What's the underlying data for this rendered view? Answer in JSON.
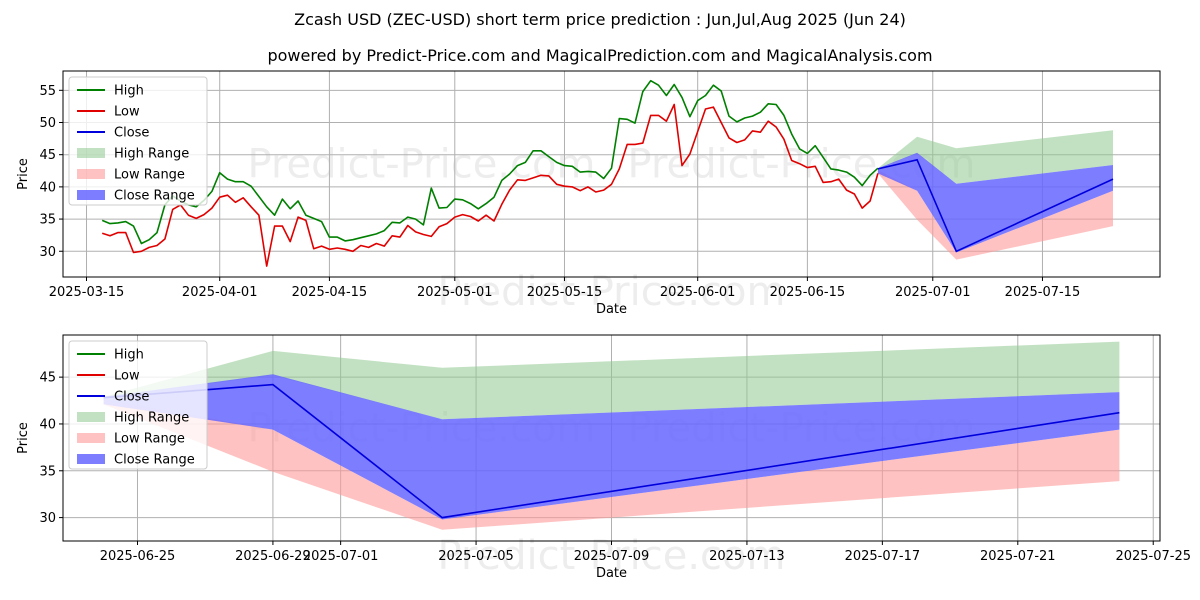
{
  "chart_data": [
    {
      "type": "line",
      "panel": "top",
      "title": "Zcash USD (ZEC-USD) short term price prediction : Jun,Jul,Aug 2025 (Jun 24)",
      "subtitle": "powered by Predict-Price.com and MagicalPrediction.com and MagicalAnalysis.com",
      "xlabel": "Date",
      "ylabel": "Price",
      "watermark": "Predict-Price.com",
      "xlim": [
        "2025-03-12",
        "2025-07-30"
      ],
      "ylim": [
        26,
        58
      ],
      "xticks": [
        {
          "date": "2025-03-15",
          "label": "2025-03-15"
        },
        {
          "date": "2025-04-01",
          "label": "2025-04-01"
        },
        {
          "date": "2025-04-15",
          "label": "2025-04-15"
        },
        {
          "date": "2025-05-01",
          "label": "2025-05-01"
        },
        {
          "date": "2025-05-15",
          "label": "2025-05-15"
        },
        {
          "date": "2025-06-01",
          "label": "2025-06-01"
        },
        {
          "date": "2025-06-15",
          "label": "2025-06-15"
        },
        {
          "date": "2025-07-01",
          "label": "2025-07-01"
        },
        {
          "date": "2025-07-15",
          "label": "2025-07-15"
        }
      ],
      "yticks": [
        30,
        35,
        40,
        45,
        50,
        55
      ],
      "grid": true,
      "legend": {
        "position": "top-left",
        "entries": [
          "High",
          "Low",
          "Close",
          "High Range",
          "Low Range",
          "Close Range"
        ]
      },
      "colors": {
        "high": "#008000",
        "low": "#e00000",
        "close": "#0000dd",
        "high_range": "#8fc98f",
        "low_range": "#ff9a9a",
        "close_range": "#6666ff"
      },
      "history_start": "2025-03-17",
      "high": [
        34.8,
        34.3,
        34.4,
        34.6,
        33.9,
        31.2,
        31.8,
        32.9,
        37.2,
        38.6,
        37.8,
        37.2,
        36.9,
        37.9,
        39.3,
        42.2,
        41.2,
        40.8,
        40.8,
        40.1,
        38.5,
        36.9,
        35.6,
        38.1,
        36.6,
        37.8,
        35.6,
        35.1,
        34.6,
        32.2,
        32.2,
        31.6,
        31.8,
        32.1,
        32.4,
        32.7,
        33.2,
        34.5,
        34.4,
        35.3,
        35.0,
        34.1,
        39.8,
        36.7,
        36.8,
        38.1,
        38.0,
        37.4,
        36.6,
        37.4,
        38.4,
        41.0,
        42.0,
        43.3,
        43.8,
        45.6,
        45.6,
        44.7,
        43.8,
        43.3,
        43.2,
        42.3,
        42.4,
        42.3,
        41.3,
        42.9,
        50.6,
        50.5,
        49.9,
        54.8,
        56.5,
        55.8,
        54.2,
        55.9,
        53.9,
        50.9,
        53.4,
        54.2,
        55.8,
        54.9,
        51.0,
        50.1,
        50.7,
        51.0,
        51.6,
        52.9,
        52.8,
        51.1,
        48.2,
        45.9,
        45.2,
        46.4,
        44.6,
        42.8,
        42.6,
        42.3,
        41.5,
        40.2,
        41.8,
        42.9
      ],
      "low": [
        32.8,
        32.4,
        32.9,
        32.9,
        29.8,
        30.0,
        30.6,
        30.9,
        31.9,
        36.5,
        37.2,
        35.6,
        35.1,
        35.7,
        36.7,
        38.4,
        38.7,
        37.6,
        38.3,
        36.9,
        35.6,
        27.7,
        33.9,
        33.9,
        31.5,
        35.3,
        34.8,
        30.4,
        30.8,
        30.3,
        30.5,
        30.3,
        30.0,
        30.9,
        30.6,
        31.2,
        30.8,
        32.4,
        32.2,
        34.0,
        33.0,
        32.6,
        32.3,
        33.8,
        34.3,
        35.3,
        35.7,
        35.4,
        34.7,
        35.6,
        34.7,
        37.3,
        39.5,
        41.1,
        41.0,
        41.4,
        41.8,
        41.7,
        40.4,
        40.1,
        40.0,
        39.4,
        40.0,
        39.2,
        39.5,
        40.4,
        42.8,
        46.6,
        46.6,
        46.8,
        51.1,
        51.1,
        50.2,
        52.8,
        43.3,
        45.1,
        48.6,
        52.1,
        52.4,
        50.0,
        47.6,
        46.9,
        47.3,
        48.7,
        48.5,
        50.2,
        49.3,
        47.4,
        44.1,
        43.6,
        43.0,
        43.2,
        40.7,
        40.8,
        41.2,
        39.5,
        38.9,
        36.7,
        37.8,
        42.1
      ],
      "forecast_dates": [
        "2025-06-24",
        "2025-06-29",
        "2025-07-04",
        "2025-07-24"
      ],
      "forecast_close": [
        42.8,
        44.2,
        30.0,
        41.2
      ],
      "high_range": {
        "upper": [
          42.9,
          47.8,
          46.0,
          48.8
        ],
        "lower": [
          42.8,
          45.2,
          40.5,
          43.4
        ]
      },
      "low_range": {
        "upper": [
          42.6,
          39.4,
          29.8,
          39.4
        ],
        "lower": [
          42.1,
          34.9,
          28.7,
          33.9
        ]
      },
      "close_range": {
        "upper": [
          42.9,
          45.3,
          40.5,
          43.4
        ],
        "lower": [
          42.1,
          39.4,
          29.8,
          39.4
        ]
      }
    },
    {
      "type": "line",
      "panel": "bottom",
      "xlabel": "Date",
      "ylabel": "Price",
      "watermark": "Predict-Price.com",
      "xlim": [
        "2025-06-22.8",
        "2025-07-25.2"
      ],
      "ylim": [
        27.5,
        49.5
      ],
      "xticks": [
        {
          "date": "2025-06-25",
          "label": "2025-06-25"
        },
        {
          "date": "2025-06-29",
          "label": "2025-06-29"
        },
        {
          "date": "2025-07-01",
          "label": "2025-07-01"
        },
        {
          "date": "2025-07-05",
          "label": "2025-07-05"
        },
        {
          "date": "2025-07-09",
          "label": "2025-07-09"
        },
        {
          "date": "2025-07-13",
          "label": "2025-07-13"
        },
        {
          "date": "2025-07-17",
          "label": "2025-07-17"
        },
        {
          "date": "2025-07-21",
          "label": "2025-07-21"
        },
        {
          "date": "2025-07-25",
          "label": "2025-07-25"
        }
      ],
      "yticks": [
        30,
        35,
        40,
        45
      ],
      "grid": true,
      "legend": {
        "position": "top-left",
        "entries": [
          "High",
          "Low",
          "Close",
          "High Range",
          "Low Range",
          "Close Range"
        ]
      }
    }
  ]
}
